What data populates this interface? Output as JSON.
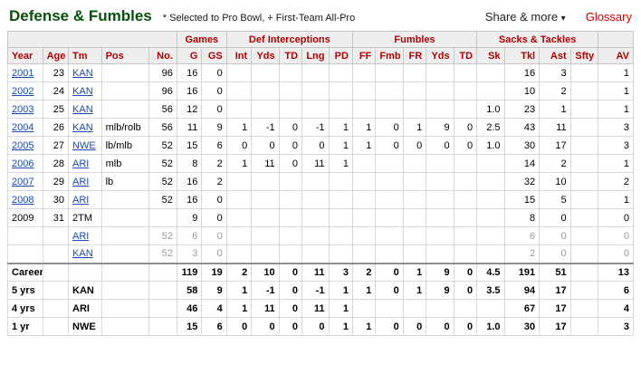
{
  "header": {
    "title": "Defense & Fumbles",
    "legend": "* Selected to Pro Bowl, + First-Team All-Pro",
    "share_label": "Share & more",
    "share_caret": "▾",
    "glossary_label": "Glossary"
  },
  "colors": {
    "title_green": "#055209",
    "header_red": "#b20000",
    "glossary_red": "#cc0000",
    "link_blue": "#1b49b5",
    "muted_gray": "#999999",
    "header_bg": "#eeeeee"
  },
  "table": {
    "column_groups": [
      {
        "label": "",
        "span": 5
      },
      {
        "label": "Games",
        "span": 2
      },
      {
        "label": "Def Interceptions",
        "span": 5
      },
      {
        "label": "Fumbles",
        "span": 5
      },
      {
        "label": "Sacks & Tackles",
        "span": 4
      },
      {
        "label": "",
        "span": 1
      }
    ],
    "columns": [
      "Year",
      "Age",
      "Tm",
      "Pos",
      "No.",
      "G",
      "GS",
      "Int",
      "Yds",
      "TD",
      "Lng",
      "PD",
      "FF",
      "Fmb",
      "FR",
      "Yds",
      "TD",
      "Sk",
      "Tkl",
      "Ast",
      "Sfty",
      "AV"
    ],
    "rows": [
      {
        "year_link": true,
        "tm_link": true,
        "muted": false,
        "cells": [
          "2001",
          "23",
          "KAN",
          "",
          "96",
          "16",
          "0",
          "",
          "",
          "",
          "",
          "",
          "",
          "",
          "",
          "",
          "",
          "",
          "16",
          "3",
          "",
          "1"
        ]
      },
      {
        "year_link": true,
        "tm_link": true,
        "muted": false,
        "cells": [
          "2002",
          "24",
          "KAN",
          "",
          "96",
          "16",
          "0",
          "",
          "",
          "",
          "",
          "",
          "",
          "",
          "",
          "",
          "",
          "",
          "10",
          "2",
          "",
          "1"
        ]
      },
      {
        "year_link": true,
        "tm_link": true,
        "muted": false,
        "cells": [
          "2003",
          "25",
          "KAN",
          "",
          "56",
          "12",
          "0",
          "",
          "",
          "",
          "",
          "",
          "",
          "",
          "",
          "",
          "",
          "1.0",
          "23",
          "1",
          "",
          "1"
        ]
      },
      {
        "year_link": true,
        "tm_link": true,
        "muted": false,
        "cells": [
          "2004",
          "26",
          "KAN",
          "mlb/rolb",
          "56",
          "11",
          "9",
          "1",
          "-1",
          "0",
          "-1",
          "1",
          "1",
          "0",
          "1",
          "9",
          "0",
          "2.5",
          "43",
          "11",
          "",
          "3"
        ]
      },
      {
        "year_link": true,
        "tm_link": true,
        "muted": false,
        "cells": [
          "2005",
          "27",
          "NWE",
          "lb/mlb",
          "52",
          "15",
          "6",
          "0",
          "0",
          "0",
          "0",
          "1",
          "1",
          "0",
          "0",
          "0",
          "0",
          "1.0",
          "30",
          "17",
          "",
          "3"
        ]
      },
      {
        "year_link": true,
        "tm_link": true,
        "muted": false,
        "cells": [
          "2006",
          "28",
          "ARI",
          "mlb",
          "52",
          "8",
          "2",
          "1",
          "11",
          "0",
          "11",
          "1",
          "",
          "",
          "",
          "",
          "",
          "",
          "14",
          "2",
          "",
          "1"
        ]
      },
      {
        "year_link": true,
        "tm_link": true,
        "muted": false,
        "cells": [
          "2007",
          "29",
          "ARI",
          "lb",
          "52",
          "16",
          "2",
          "",
          "",
          "",
          "",
          "",
          "",
          "",
          "",
          "",
          "",
          "",
          "32",
          "10",
          "",
          "2"
        ]
      },
      {
        "year_link": true,
        "tm_link": true,
        "muted": false,
        "cells": [
          "2008",
          "30",
          "ARI",
          "",
          "52",
          "16",
          "0",
          "",
          "",
          "",
          "",
          "",
          "",
          "",
          "",
          "",
          "",
          "",
          "15",
          "5",
          "",
          "1"
        ]
      },
      {
        "year_link": false,
        "tm_link": false,
        "muted": false,
        "cells": [
          "2009",
          "31",
          "2TM",
          "",
          "",
          "9",
          "0",
          "",
          "",
          "",
          "",
          "",
          "",
          "",
          "",
          "",
          "",
          "",
          "8",
          "0",
          "",
          "0"
        ]
      },
      {
        "year_link": false,
        "tm_link": true,
        "muted": true,
        "cells": [
          "",
          "",
          "ARI",
          "",
          "52",
          "6",
          "0",
          "",
          "",
          "",
          "",
          "",
          "",
          "",
          "",
          "",
          "",
          "",
          "6",
          "0",
          "",
          "0"
        ]
      },
      {
        "year_link": false,
        "tm_link": true,
        "muted": true,
        "cells": [
          "",
          "",
          "KAN",
          "",
          "52",
          "3",
          "0",
          "",
          "",
          "",
          "",
          "",
          "",
          "",
          "",
          "",
          "",
          "",
          "2",
          "0",
          "",
          "0"
        ]
      }
    ],
    "summary_rows": [
      {
        "cells": [
          "Career",
          "",
          "",
          "",
          "",
          "119",
          "19",
          "2",
          "10",
          "0",
          "11",
          "3",
          "2",
          "0",
          "1",
          "9",
          "0",
          "4.5",
          "191",
          "51",
          "",
          "13"
        ]
      },
      {
        "cells": [
          "5 yrs",
          "",
          "KAN",
          "",
          "",
          "58",
          "9",
          "1",
          "-1",
          "0",
          "-1",
          "1",
          "1",
          "0",
          "1",
          "9",
          "0",
          "3.5",
          "94",
          "17",
          "",
          "6"
        ]
      },
      {
        "cells": [
          "4 yrs",
          "",
          "ARI",
          "",
          "",
          "46",
          "4",
          "1",
          "11",
          "0",
          "11",
          "1",
          "",
          "",
          "",
          "",
          "",
          "",
          "67",
          "17",
          "",
          "4"
        ]
      },
      {
        "cells": [
          "1 yr",
          "",
          "NWE",
          "",
          "",
          "15",
          "6",
          "0",
          "0",
          "0",
          "0",
          "1",
          "1",
          "0",
          "0",
          "0",
          "0",
          "1.0",
          "30",
          "17",
          "",
          "3"
        ]
      }
    ]
  }
}
